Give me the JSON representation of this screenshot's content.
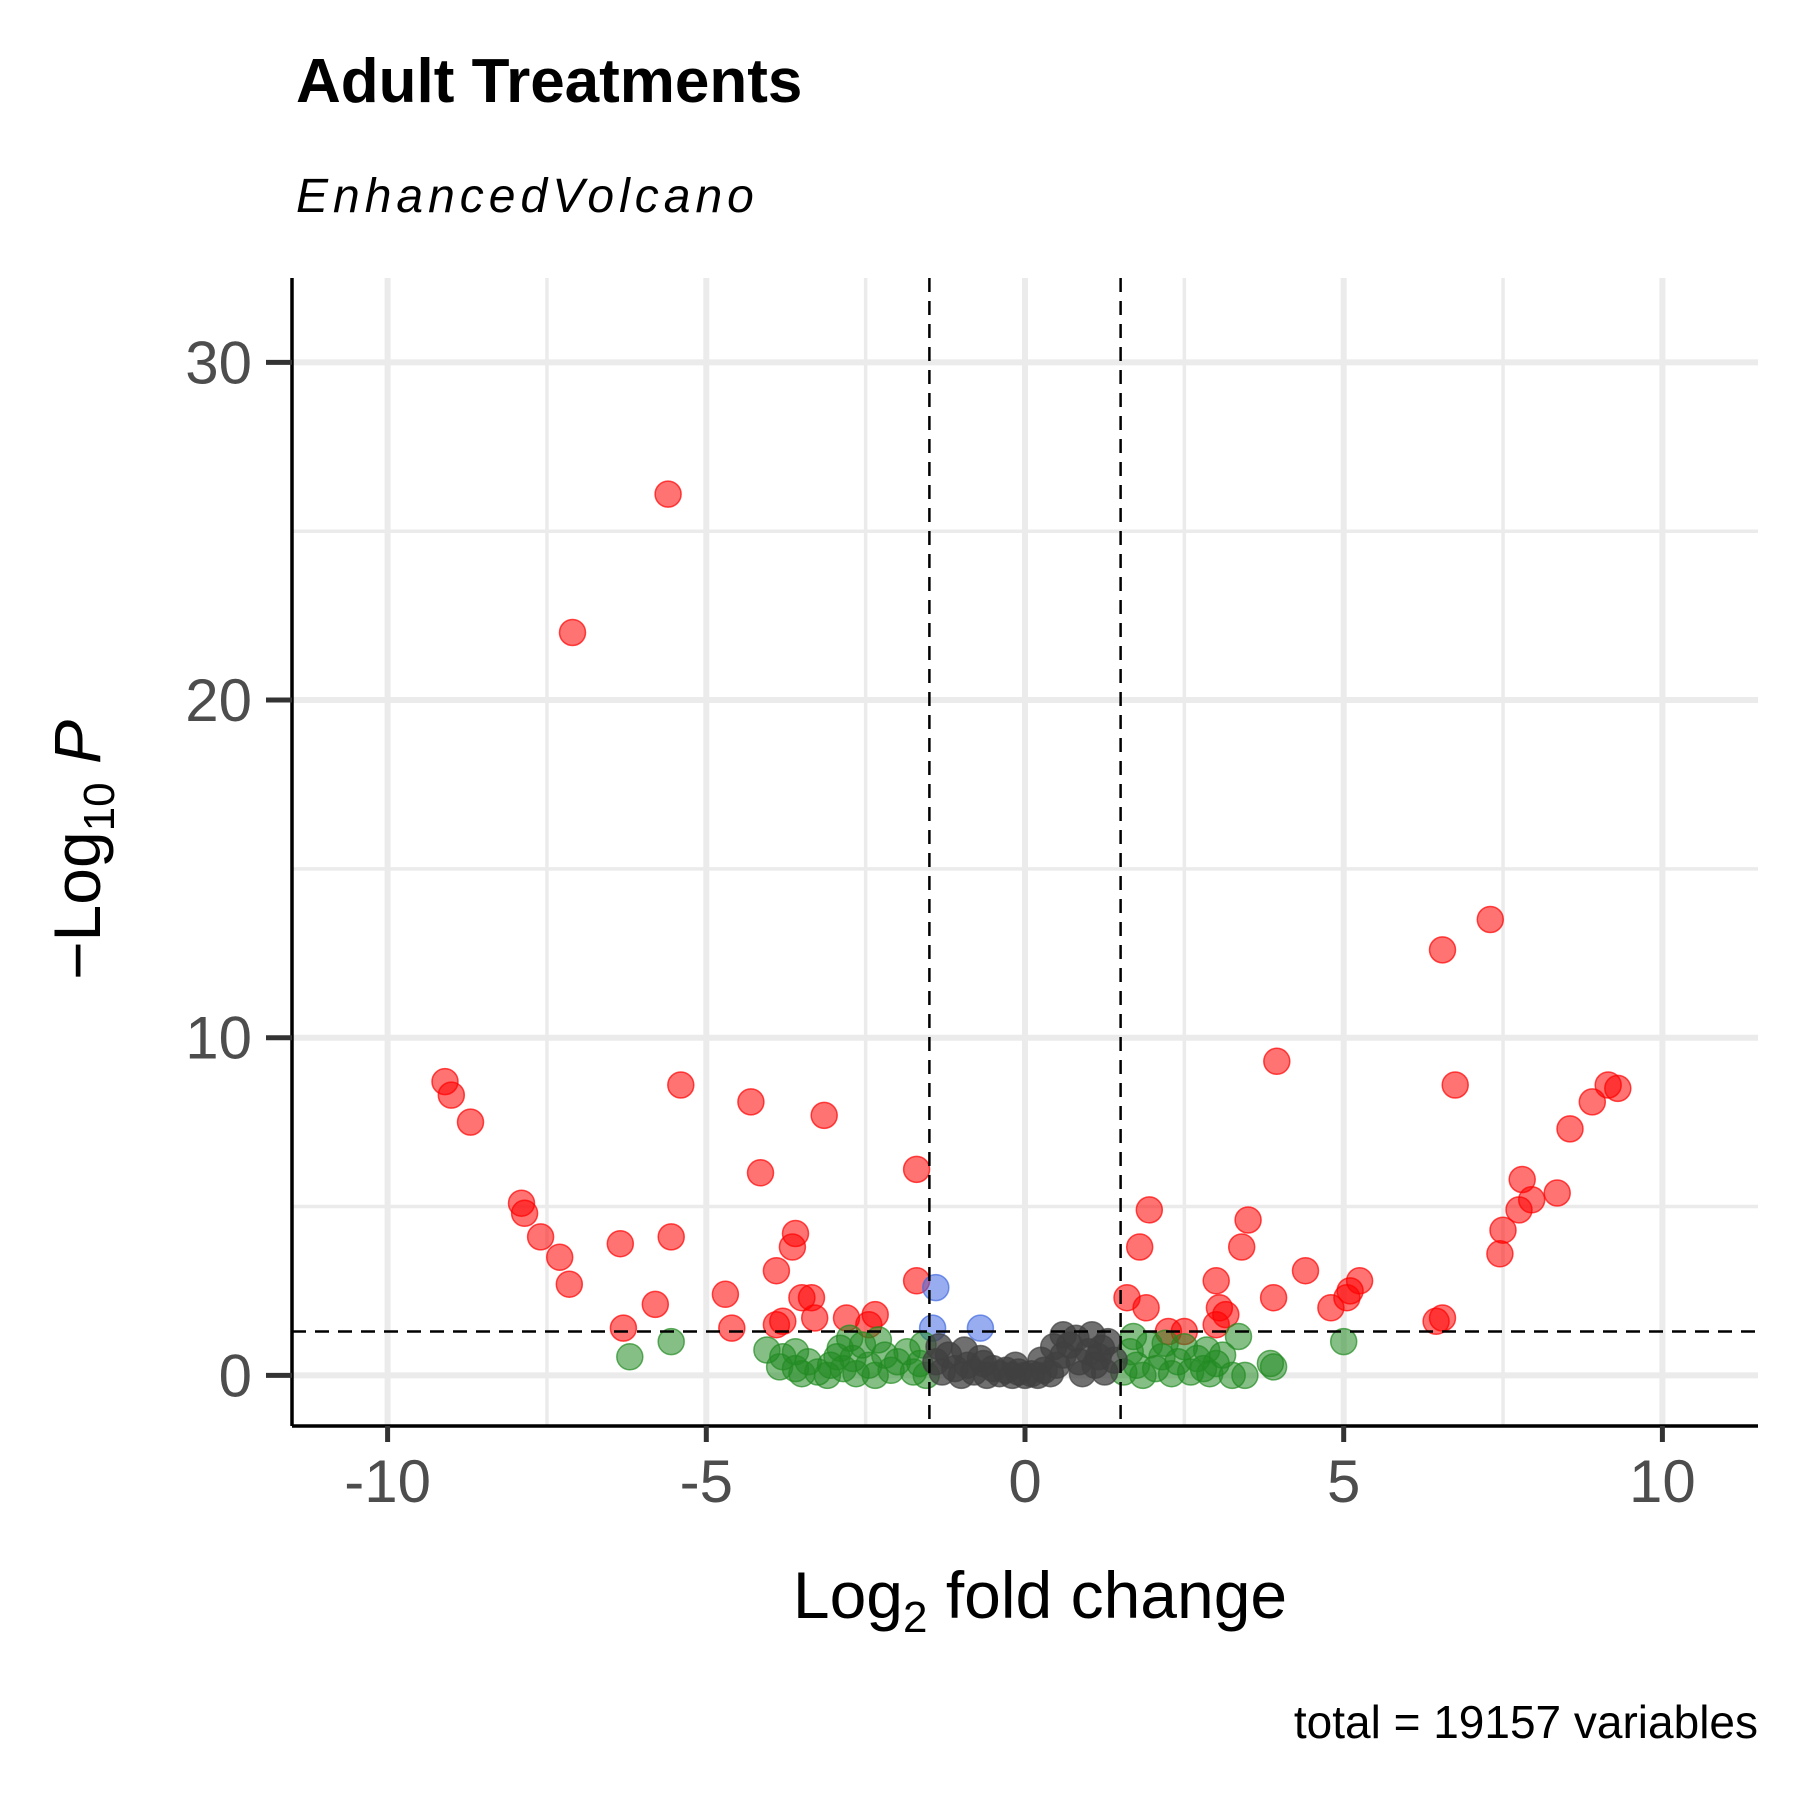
{
  "chart_data": {
    "type": "scatter",
    "title": "Adult Treatments",
    "subtitle": "EnhancedVolcano",
    "xlabel": "Log2 fold change",
    "ylabel": "-Log10 P",
    "caption": "total = 19157 variables",
    "xlim": [
      -11.5,
      11.5
    ],
    "ylim": [
      -1.5,
      32.5
    ],
    "x_ticks": [
      -10,
      -5,
      0,
      5,
      10
    ],
    "x_tick_labels": [
      "-10",
      "-5",
      "0",
      "5",
      "10"
    ],
    "y_ticks": [
      0,
      10,
      20,
      30
    ],
    "y_tick_labels": [
      "0",
      "10",
      "20",
      "30"
    ],
    "grid": true,
    "legend": "none",
    "cutoffs": {
      "fold_change": [
        -1.5,
        1.5
      ],
      "p_value_line": 1.3
    },
    "colors": {
      "ns": "#404040",
      "log2fc": "#228b22",
      "p": "#4169e1",
      "p_and_log2fc": "#ff0000"
    },
    "series": [
      {
        "group": "p_and_log2fc",
        "points": [
          [
            -5.6,
            26.1
          ],
          [
            -7.1,
            22.0
          ],
          [
            -9.1,
            8.7
          ],
          [
            -9.0,
            8.3
          ],
          [
            -8.7,
            7.5
          ],
          [
            -5.4,
            8.6
          ],
          [
            -4.3,
            8.1
          ],
          [
            -3.15,
            7.7
          ],
          [
            -4.15,
            6.0
          ],
          [
            -1.7,
            6.1
          ],
          [
            -7.9,
            5.1
          ],
          [
            -7.85,
            4.8
          ],
          [
            -7.6,
            4.1
          ],
          [
            -7.3,
            3.5
          ],
          [
            -7.15,
            2.7
          ],
          [
            -6.35,
            3.9
          ],
          [
            -5.55,
            4.1
          ],
          [
            -5.8,
            2.1
          ],
          [
            -6.3,
            1.4
          ],
          [
            -4.7,
            2.4
          ],
          [
            -4.6,
            1.4
          ],
          [
            -3.6,
            4.2
          ],
          [
            -3.65,
            3.8
          ],
          [
            -3.9,
            3.1
          ],
          [
            -3.5,
            2.3
          ],
          [
            -3.35,
            2.3
          ],
          [
            -3.9,
            1.5
          ],
          [
            -3.8,
            1.6
          ],
          [
            -3.3,
            1.7
          ],
          [
            -2.8,
            1.7
          ],
          [
            -2.35,
            1.8
          ],
          [
            -2.45,
            1.5
          ],
          [
            -1.7,
            2.8
          ],
          [
            1.6,
            2.3
          ],
          [
            1.8,
            3.8
          ],
          [
            1.95,
            4.9
          ],
          [
            1.9,
            2.0
          ],
          [
            3.0,
            2.8
          ],
          [
            3.05,
            2.0
          ],
          [
            3.15,
            1.8
          ],
          [
            3.0,
            1.5
          ],
          [
            2.25,
            1.3
          ],
          [
            2.5,
            1.3
          ],
          [
            3.4,
            3.8
          ],
          [
            3.5,
            4.6
          ],
          [
            3.9,
            2.3
          ],
          [
            3.95,
            9.3
          ],
          [
            4.4,
            3.1
          ],
          [
            4.8,
            2.0
          ],
          [
            5.05,
            2.3
          ],
          [
            5.1,
            2.5
          ],
          [
            5.25,
            2.8
          ],
          [
            6.45,
            1.6
          ],
          [
            6.55,
            1.7
          ],
          [
            6.55,
            12.6
          ],
          [
            6.75,
            8.6
          ],
          [
            7.3,
            13.5
          ],
          [
            7.5,
            4.3
          ],
          [
            7.45,
            3.6
          ],
          [
            7.75,
            4.9
          ],
          [
            7.8,
            5.8
          ],
          [
            7.95,
            5.2
          ],
          [
            8.35,
            5.4
          ],
          [
            8.55,
            7.3
          ],
          [
            8.9,
            8.1
          ],
          [
            9.15,
            8.6
          ],
          [
            9.3,
            8.5
          ]
        ]
      },
      {
        "group": "p",
        "points": [
          [
            -1.4,
            2.6
          ],
          [
            -1.45,
            1.4
          ],
          [
            -0.7,
            1.4
          ]
        ]
      },
      {
        "group": "log2fc",
        "points": [
          [
            -6.2,
            0.55
          ],
          [
            -5.55,
            1.0
          ],
          [
            -4.05,
            0.75
          ],
          [
            -3.8,
            0.55
          ],
          [
            -3.6,
            0.7
          ],
          [
            -3.85,
            0.25
          ],
          [
            -3.6,
            0.2
          ],
          [
            -3.4,
            0.4
          ],
          [
            -3.25,
            0.1
          ],
          [
            -3.05,
            0.3
          ],
          [
            -2.9,
            0.8
          ],
          [
            -2.85,
            0.2
          ],
          [
            -2.7,
            0.5
          ],
          [
            -2.55,
            0.9
          ],
          [
            -2.45,
            0.3
          ],
          [
            -2.35,
            0.0
          ],
          [
            -2.2,
            0.6
          ],
          [
            -2.1,
            0.15
          ],
          [
            -2.0,
            0.4
          ],
          [
            -1.85,
            0.7
          ],
          [
            -1.75,
            0.1
          ],
          [
            -1.65,
            0.35
          ],
          [
            -1.55,
            0.0
          ],
          [
            -2.65,
            0.05
          ],
          [
            -3.1,
            0.0
          ],
          [
            -2.3,
            1.05
          ],
          [
            -2.75,
            1.1
          ],
          [
            -1.6,
            0.9
          ],
          [
            -3.5,
            0.05
          ],
          [
            -2.95,
            0.55
          ],
          [
            1.55,
            0.1
          ],
          [
            1.65,
            0.7
          ],
          [
            1.75,
            0.3
          ],
          [
            1.85,
            0.0
          ],
          [
            1.95,
            0.9
          ],
          [
            2.05,
            0.2
          ],
          [
            2.15,
            0.55
          ],
          [
            2.3,
            0.05
          ],
          [
            2.4,
            0.4
          ],
          [
            2.5,
            0.85
          ],
          [
            2.6,
            0.1
          ],
          [
            2.7,
            0.5
          ],
          [
            2.8,
            0.2
          ],
          [
            2.9,
            0.05
          ],
          [
            3.0,
            0.35
          ],
          [
            3.1,
            0.6
          ],
          [
            3.25,
            0.0
          ],
          [
            3.35,
            1.15
          ],
          [
            3.45,
            0.0
          ],
          [
            3.85,
            0.35
          ],
          [
            3.9,
            0.25
          ],
          [
            5.0,
            1.0
          ],
          [
            1.7,
            1.15
          ],
          [
            2.2,
            0.95
          ],
          [
            2.85,
            0.75
          ]
        ]
      },
      {
        "group": "ns",
        "points": [
          [
            -1.4,
            0.4
          ],
          [
            -1.3,
            0.1
          ],
          [
            -1.2,
            0.6
          ],
          [
            -1.1,
            0.2
          ],
          [
            -1.0,
            0.0
          ],
          [
            -0.9,
            0.3
          ],
          [
            -0.8,
            0.1
          ],
          [
            -0.7,
            0.5
          ],
          [
            -0.6,
            0.0
          ],
          [
            -0.5,
            0.2
          ],
          [
            -0.4,
            0.05
          ],
          [
            -0.3,
            0.15
          ],
          [
            -0.2,
            0.0
          ],
          [
            -0.1,
            0.1
          ],
          [
            0.0,
            0.0
          ],
          [
            0.1,
            0.05
          ],
          [
            0.2,
            0.0
          ],
          [
            0.3,
            0.15
          ],
          [
            0.4,
            0.05
          ],
          [
            0.5,
            0.3
          ],
          [
            0.6,
            0.6
          ],
          [
            0.6,
            1.2
          ],
          [
            0.7,
            0.9
          ],
          [
            0.8,
            1.1
          ],
          [
            0.85,
            0.4
          ],
          [
            0.9,
            0.05
          ],
          [
            1.0,
            0.7
          ],
          [
            1.05,
            1.2
          ],
          [
            1.1,
            0.3
          ],
          [
            1.2,
            0.8
          ],
          [
            1.25,
            0.1
          ],
          [
            1.3,
            1.0
          ],
          [
            1.4,
            0.45
          ],
          [
            -1.35,
            0.85
          ],
          [
            -0.95,
            0.75
          ],
          [
            -0.65,
            0.35
          ],
          [
            0.25,
            0.45
          ],
          [
            0.45,
            0.85
          ],
          [
            -0.15,
            0.3
          ],
          [
            1.15,
            0.55
          ]
        ]
      }
    ]
  }
}
